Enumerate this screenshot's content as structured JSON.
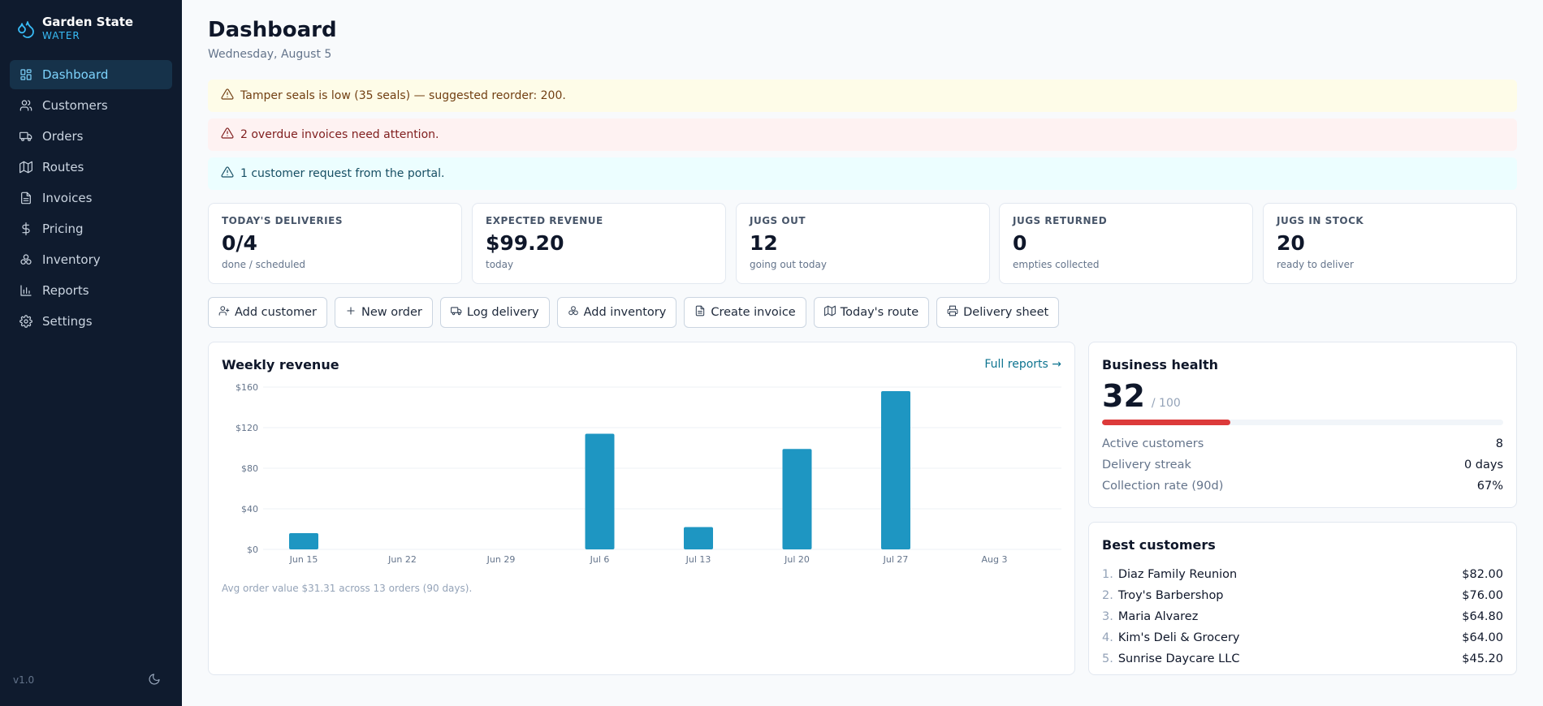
{
  "brand": {
    "name": "Garden State",
    "sub": "WATER"
  },
  "sidebar": {
    "items": [
      {
        "label": "Dashboard",
        "icon": "dashboard-icon",
        "active": true
      },
      {
        "label": "Customers",
        "icon": "users-icon"
      },
      {
        "label": "Orders",
        "icon": "truck-icon"
      },
      {
        "label": "Routes",
        "icon": "map-icon"
      },
      {
        "label": "Invoices",
        "icon": "file-icon"
      },
      {
        "label": "Pricing",
        "icon": "dollar-icon"
      },
      {
        "label": "Inventory",
        "icon": "boxes-icon"
      },
      {
        "label": "Reports",
        "icon": "bar-chart-icon"
      },
      {
        "label": "Settings",
        "icon": "gear-icon"
      }
    ],
    "version": "v1.0"
  },
  "header": {
    "title": "Dashboard",
    "date": "Wednesday, August 5"
  },
  "alerts": {
    "warn": "Tamper seals is low (35 seals) — suggested reorder: 200.",
    "danger": "2 overdue invoices need attention.",
    "info": "1 customer request from the portal."
  },
  "stats": [
    {
      "label": "TODAY'S DELIVERIES",
      "value": "0/4",
      "sub": "done / scheduled"
    },
    {
      "label": "EXPECTED REVENUE",
      "value": "$99.20",
      "sub": "today"
    },
    {
      "label": "JUGS OUT",
      "value": "12",
      "sub": "going out today"
    },
    {
      "label": "JUGS RETURNED",
      "value": "0",
      "sub": "empties collected"
    },
    {
      "label": "JUGS IN STOCK",
      "value": "20",
      "sub": "ready to deliver"
    }
  ],
  "actions": [
    {
      "label": "Add customer",
      "icon": "user-plus-icon"
    },
    {
      "label": "New order",
      "icon": "plus-icon"
    },
    {
      "label": "Log delivery",
      "icon": "truck-icon"
    },
    {
      "label": "Add inventory",
      "icon": "boxes-icon"
    },
    {
      "label": "Create invoice",
      "icon": "file-icon"
    },
    {
      "label": "Today's route",
      "icon": "map-icon"
    },
    {
      "label": "Delivery sheet",
      "icon": "printer-icon"
    }
  ],
  "revenue": {
    "title": "Weekly revenue",
    "link": "Full reports →",
    "note": "Avg order value $31.31 across 13 orders (90 days)."
  },
  "chart_data": {
    "type": "bar",
    "categories": [
      "Jun 15",
      "Jun 22",
      "Jun 29",
      "Jul 6",
      "Jul 13",
      "Jul 20",
      "Jul 27",
      "Aug 3"
    ],
    "values": [
      16,
      0,
      0,
      114,
      22,
      99,
      156,
      0
    ],
    "yticks": [
      "$0",
      "$40",
      "$80",
      "$120",
      "$160"
    ],
    "ylim": [
      0,
      160
    ],
    "grid": true,
    "bar_color": "#1e96c2"
  },
  "health": {
    "title": "Business health",
    "score": "32",
    "max": "/ 100",
    "fraction": 0.32,
    "bar_color": "#dc3a3a",
    "rows": [
      {
        "label": "Active customers",
        "value": "8"
      },
      {
        "label": "Delivery streak",
        "value": "0 days"
      },
      {
        "label": "Collection rate (90d)",
        "value": "67%"
      }
    ]
  },
  "best": {
    "title": "Best customers",
    "rows": [
      {
        "rank": "1.",
        "name": "Diaz Family Reunion",
        "value": "$82.00"
      },
      {
        "rank": "2.",
        "name": "Troy's Barbershop",
        "value": "$76.00"
      },
      {
        "rank": "3.",
        "name": "Maria Alvarez",
        "value": "$64.80"
      },
      {
        "rank": "4.",
        "name": "Kim's Deli & Grocery",
        "value": "$64.00"
      },
      {
        "rank": "5.",
        "name": "Sunrise Daycare LLC",
        "value": "$45.20"
      }
    ]
  }
}
